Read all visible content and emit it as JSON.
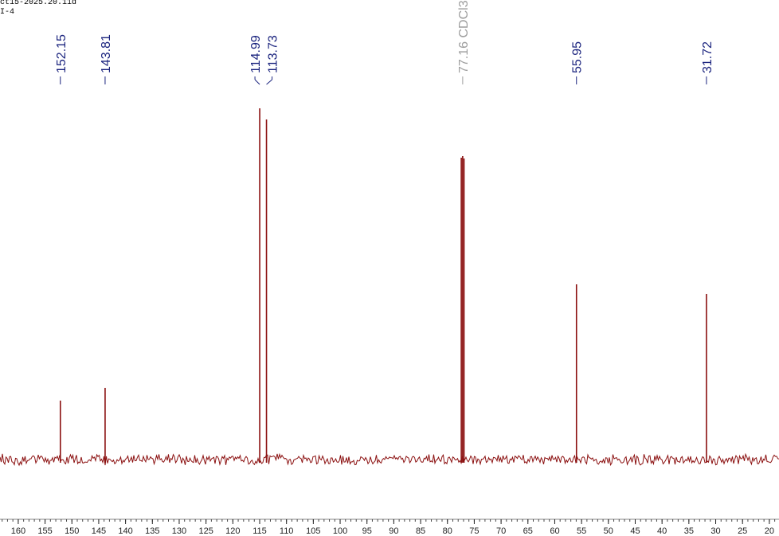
{
  "header": {
    "experiment": "ct15-2025.20.11d",
    "sample": "I-4"
  },
  "chart_data": {
    "type": "spectrum",
    "x": [
      152.15,
      143.81,
      114.99,
      113.73,
      77.42,
      77.16,
      76.91,
      55.95,
      31.72
    ],
    "values": [
      74,
      90,
      441,
      427,
      379,
      381,
      378,
      220,
      208
    ],
    "color": "#8b1010",
    "xlim": [
      163.4,
      18.2
    ],
    "ylim": [
      -96,
      577
    ],
    "xticks": [
      160,
      155,
      150,
      145,
      140,
      135,
      130,
      125,
      120,
      115,
      110,
      105,
      100,
      95,
      90,
      85,
      80,
      75,
      70,
      65,
      60,
      55,
      50,
      45,
      40,
      35,
      30,
      25,
      20
    ],
    "peak_labels": [
      {
        "x": 152.15,
        "label": "152.15",
        "color": "#1a237e"
      },
      {
        "x": 143.81,
        "label": "143.81",
        "color": "#1a237e"
      },
      {
        "x": 114.99,
        "label": "114.99",
        "color": "#1a237e"
      },
      {
        "x": 113.73,
        "label": "113.73",
        "color": "#1a237e"
      },
      {
        "x": 77.16,
        "label": "77.16 CDCl3",
        "color": "#9e9e9e"
      },
      {
        "x": 55.95,
        "label": "55.95",
        "color": "#1a237e"
      },
      {
        "x": 31.72,
        "label": "31.72",
        "color": "#1a237e"
      }
    ]
  }
}
